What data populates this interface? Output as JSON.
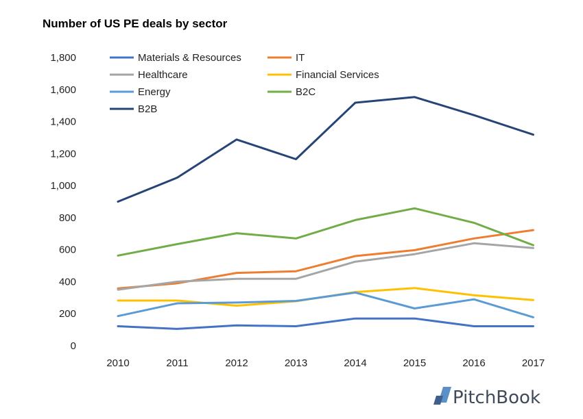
{
  "chart_data": {
    "type": "line",
    "title": "Number of US PE deals by sector",
    "xlabel": "",
    "ylabel": "",
    "categories": [
      "2010",
      "2011",
      "2012",
      "2013",
      "2014",
      "2015",
      "2016",
      "2017"
    ],
    "ylim": [
      0,
      1800
    ],
    "yticks": [
      0,
      200,
      400,
      600,
      800,
      1000,
      1200,
      1400,
      1600,
      1800
    ],
    "ytick_labels": [
      "0",
      "200",
      "400",
      "600",
      "800",
      "1,000",
      "1,200",
      "1,400",
      "1,600",
      "1,800"
    ],
    "grid": false,
    "legend_position": "top",
    "series": [
      {
        "name": "Materials & Resources",
        "color": "#4472c4",
        "values": [
          122,
          105,
          127,
          122,
          170,
          170,
          122,
          122
        ]
      },
      {
        "name": "IT",
        "color": "#ed7d31",
        "values": [
          358,
          390,
          455,
          465,
          560,
          597,
          670,
          722
        ]
      },
      {
        "name": "Healthcare",
        "color": "#a5a5a5",
        "values": [
          350,
          400,
          418,
          418,
          525,
          572,
          640,
          610
        ]
      },
      {
        "name": "Financial Services",
        "color": "#ffc000",
        "values": [
          282,
          282,
          250,
          278,
          335,
          360,
          315,
          285
        ]
      },
      {
        "name": "Energy",
        "color": "#5b9bd5",
        "values": [
          185,
          265,
          270,
          280,
          332,
          233,
          290,
          178
        ]
      },
      {
        "name": "B2C",
        "color": "#70ad47",
        "values": [
          563,
          635,
          703,
          670,
          785,
          858,
          768,
          628
        ]
      },
      {
        "name": "B2B",
        "color": "#264478",
        "values": [
          900,
          1050,
          1288,
          1165,
          1518,
          1553,
          1440,
          1318
        ]
      }
    ]
  },
  "brand": {
    "name": "PitchBook"
  }
}
